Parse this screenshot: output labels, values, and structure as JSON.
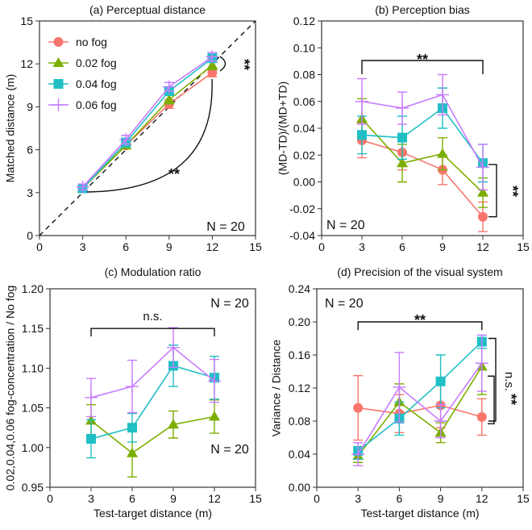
{
  "colors": {
    "no fog": "#f8766d",
    "0.02 fog": "#7cae00",
    "0.04 fog": "#1fbfc4",
    "0.06 fog": "#c77cff"
  },
  "legend": [
    {
      "name": "no fog",
      "marker": "circle"
    },
    {
      "name": "0.02 fog",
      "marker": "triangle"
    },
    {
      "name": "0.04 fog",
      "marker": "square"
    },
    {
      "name": "0.06 fog",
      "marker": "plus"
    }
  ],
  "chart_data": [
    {
      "type": "line",
      "title": "(a) Perceptual distance",
      "xlabel": "",
      "ylabel": "Matched distance (m)",
      "xlim": [
        0,
        15
      ],
      "ylim": [
        0,
        15
      ],
      "xticks": [
        0,
        3,
        6,
        9,
        12,
        15
      ],
      "yticks": [
        0,
        3,
        6,
        9,
        12,
        15
      ],
      "x": [
        3,
        6,
        9,
        12
      ],
      "reference_line": "y = x (dashed)",
      "legend_placement": "top-left",
      "series": [
        {
          "name": "no fog",
          "values": [
            3.3,
            6.3,
            9.2,
            11.4
          ],
          "errors": [
            0.2,
            0.2,
            0.3,
            0.3
          ]
        },
        {
          "name": "0.02 fog",
          "values": [
            3.3,
            6.3,
            9.5,
            11.9
          ],
          "errors": [
            0.2,
            0.2,
            0.3,
            0.3
          ]
        },
        {
          "name": "0.04 fog",
          "values": [
            3.3,
            6.5,
            10.1,
            12.4
          ],
          "errors": [
            0.2,
            0.3,
            0.3,
            0.3
          ]
        },
        {
          "name": "0.06 fog",
          "values": [
            3.4,
            6.7,
            10.4,
            12.5
          ],
          "errors": [
            0.2,
            0.3,
            0.3,
            0.3
          ]
        }
      ],
      "annotations": [
        "**",
        "**",
        "N = 20"
      ]
    },
    {
      "type": "line",
      "title": "(b) Perception bias",
      "xlabel": "",
      "ylabel": "(MD-TD)/(MD+TD)",
      "xlim": [
        0,
        15
      ],
      "ylim": [
        -0.04,
        0.12
      ],
      "xticks": [
        0,
        3,
        6,
        9,
        12,
        15
      ],
      "yticks": [
        "-0.04",
        "-0.02",
        "0.00",
        "0.02",
        "0.04",
        "0.06",
        "0.08",
        "0.10",
        "0.12"
      ],
      "x": [
        3,
        6,
        9,
        12
      ],
      "series": [
        {
          "name": "no fog",
          "values": [
            0.031,
            0.022,
            0.009,
            -0.026
          ],
          "errors": [
            0.013,
            0.013,
            0.011,
            0.011
          ]
        },
        {
          "name": "0.02 fog",
          "values": [
            0.047,
            0.014,
            0.021,
            -0.008
          ],
          "errors": [
            0.015,
            0.014,
            0.012,
            0.011
          ]
        },
        {
          "name": "0.04 fog",
          "values": [
            0.035,
            0.033,
            0.055,
            0.014
          ],
          "errors": [
            0.014,
            0.016,
            0.015,
            0.014
          ]
        },
        {
          "name": "0.06 fog",
          "values": [
            0.06,
            0.055,
            0.065,
            0.011
          ],
          "errors": [
            0.017,
            0.012,
            0.015,
            0.017
          ]
        }
      ],
      "annotations": [
        "**",
        "**",
        "N = 20"
      ]
    },
    {
      "type": "line",
      "title": "(c) Modulation ratio",
      "xlabel": "Test-target distance (m)",
      "ylabel": "0.02,0.04,0.06 fog-concentration / No fog",
      "xlim": [
        0,
        15
      ],
      "ylim": [
        0.95,
        1.2
      ],
      "xticks": [
        0,
        3,
        6,
        9,
        12,
        15
      ],
      "yticks": [
        "0.95",
        "1.00",
        "1.05",
        "1.10",
        "1.15",
        "1.20"
      ],
      "x": [
        3,
        6,
        9,
        12
      ],
      "series": [
        {
          "name": "0.02 fog",
          "values": [
            1.034,
            0.993,
            1.029,
            1.039
          ],
          "errors": [
            0.02,
            0.03,
            0.017,
            0.021
          ]
        },
        {
          "name": "0.04 fog",
          "values": [
            1.011,
            1.025,
            1.103,
            1.088
          ],
          "errors": [
            0.024,
            0.018,
            0.026,
            0.027
          ]
        },
        {
          "name": "0.06 fog",
          "values": [
            1.063,
            1.077,
            1.126,
            1.084
          ],
          "errors": [
            0.024,
            0.033,
            0.025,
            0.027
          ]
        }
      ],
      "annotations": [
        "n.s.",
        "**",
        "N = 20",
        "N = 20"
      ]
    },
    {
      "type": "line",
      "title": "(d) Precision of the visual system",
      "xlabel": "Test-target distance (m)",
      "ylabel": "Variance / Distance",
      "xlim": [
        0,
        15
      ],
      "ylim": [
        0,
        0.24
      ],
      "xticks": [
        0,
        3,
        6,
        9,
        12,
        15
      ],
      "yticks": [
        "0.00",
        "0.04",
        "0.08",
        "0.12",
        "0.16",
        "0.20",
        "0.24"
      ],
      "x": [
        3,
        6,
        9,
        12
      ],
      "series": [
        {
          "name": "no fog",
          "values": [
            0.096,
            0.089,
            0.099,
            0.085
          ],
          "errors": [
            0.039,
            0.023,
            0.027,
            0.022
          ]
        },
        {
          "name": "0.02 fog",
          "values": [
            0.038,
            0.103,
            0.066,
            0.146
          ],
          "errors": [
            0.008,
            0.022,
            0.012,
            0.034
          ]
        },
        {
          "name": "0.04 fog",
          "values": [
            0.044,
            0.083,
            0.128,
            0.176
          ],
          "errors": [
            0.01,
            0.02,
            0.032,
            0.008
          ]
        },
        {
          "name": "0.06 fog",
          "values": [
            0.04,
            0.121,
            0.08,
            0.15
          ],
          "errors": [
            0.014,
            0.042,
            0.02,
            0.034
          ]
        }
      ],
      "annotations": [
        "**",
        "n.s.",
        "N = 20"
      ]
    }
  ]
}
